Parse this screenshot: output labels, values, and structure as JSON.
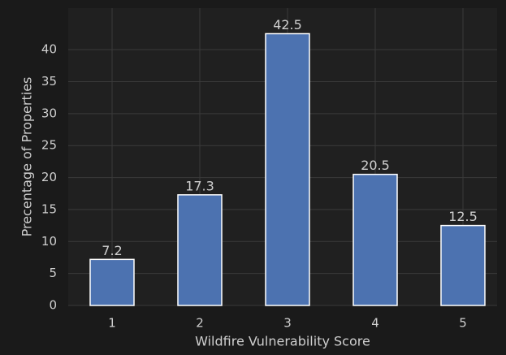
{
  "chart_data": {
    "type": "bar",
    "xlabel": "Wildfire Vulnerability Score",
    "ylabel": "Precentage of Properties",
    "categories": [
      "1",
      "2",
      "3",
      "4",
      "5"
    ],
    "values": [
      7.2,
      17.3,
      42.5,
      20.5,
      12.5
    ],
    "color": "#4c72b0",
    "ylim": [
      0,
      46.5
    ],
    "yticks": [
      0,
      5,
      10,
      15,
      20,
      25,
      30,
      35,
      40
    ],
    "grid": true
  }
}
